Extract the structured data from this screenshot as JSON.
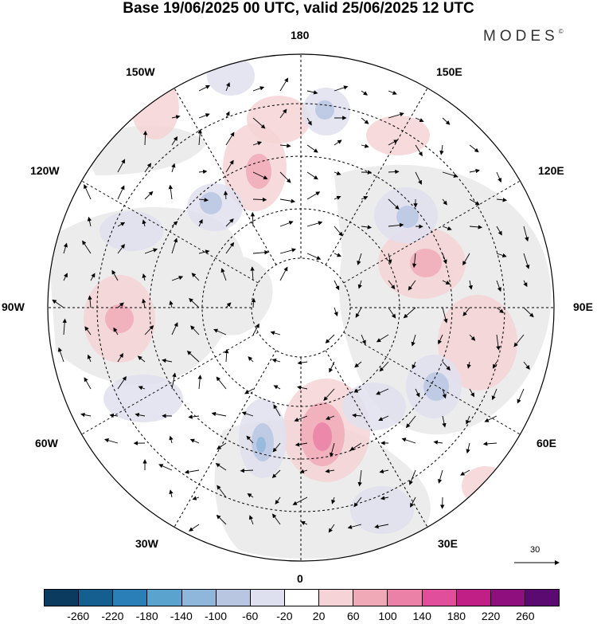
{
  "title": "Base 19/06/2025 00 UTC, valid 25/06/2025 12 UTC",
  "brand": "MODES",
  "brand_mark": "©",
  "longitude_labels": {
    "top": "180",
    "bottom": "0",
    "left": "90W",
    "right": "90E",
    "upper_left_1": "150W",
    "upper_left_2": "120W",
    "upper_right_1": "150E",
    "upper_right_2": "120E",
    "lower_left_1": "60W",
    "lower_left_2": "30W",
    "lower_right_1": "60E",
    "lower_right_2": "30E"
  },
  "reference_vector": "30",
  "colorbar": {
    "colors": [
      "#0b3b5e",
      "#145f8f",
      "#2a7fb8",
      "#5aa3cf",
      "#8fb7dc",
      "#b9c6e2",
      "#dfe0ef",
      "#ffffff",
      "#f6d3d6",
      "#f0aab7",
      "#eb81a7",
      "#e14e9b",
      "#c21f86",
      "#8e0f7d",
      "#5a0a70"
    ],
    "tick_labels": [
      "-260",
      "-220",
      "-180",
      "-140",
      "-100",
      "-60",
      "-20",
      "20",
      "60",
      "100",
      "140",
      "180",
      "220",
      "260"
    ]
  },
  "anomaly_colors": {
    "positive_light": "#f6d3d6",
    "positive_mid": "#f0aab7",
    "positive_strong": "#eb81a7",
    "negative_light": "#dfe0ef",
    "negative_mid": "#b9c6e2",
    "negative_strong": "#8fb7dc"
  }
}
